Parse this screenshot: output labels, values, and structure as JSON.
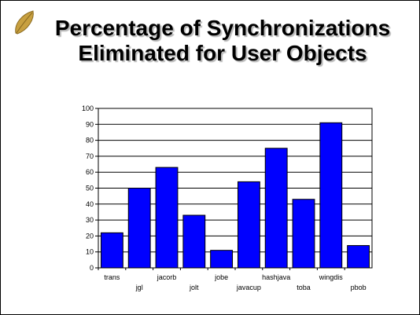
{
  "slide": {
    "title_line1": "Percentage of Synchronizations",
    "title_line2": "Eliminated for User Objects"
  },
  "colors": {
    "bar_fill": "#0000ff",
    "bar_stroke": "#000000",
    "gridline": "#000000",
    "bullet_leaf": "#c8a040"
  },
  "icons": {
    "bullet": "leaf-bullet-icon"
  },
  "chart_data": {
    "type": "bar",
    "categories": [
      "trans",
      "jgl",
      "jacorb",
      "jolt",
      "jobe",
      "javacup",
      "hashjava",
      "toba",
      "wingdis",
      "pbob"
    ],
    "values": [
      22,
      50,
      63,
      33,
      11,
      54,
      75,
      43,
      91,
      14
    ],
    "ylim": [
      0,
      100
    ],
    "yticks": [
      0,
      10,
      20,
      30,
      40,
      50,
      60,
      70,
      80,
      90,
      100
    ],
    "ytick_labels": [
      "0",
      "10",
      "20",
      "30",
      "40",
      "50",
      "60",
      "70",
      "80",
      "90",
      "100"
    ],
    "title": "",
    "xlabel": "",
    "ylabel": "",
    "grid": true,
    "legend": "none"
  }
}
